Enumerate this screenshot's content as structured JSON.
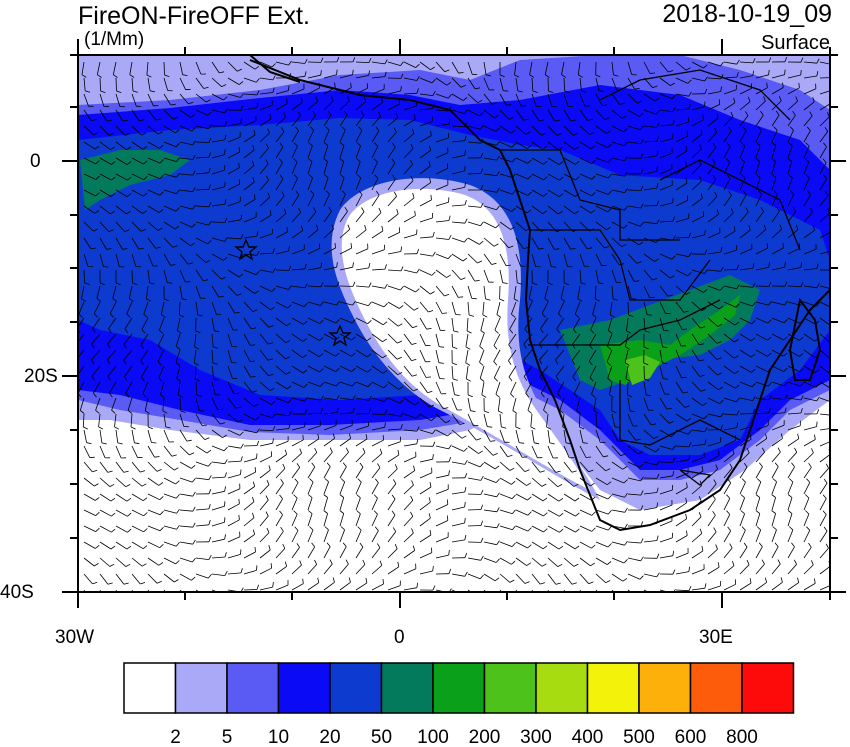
{
  "header": {
    "title": "FireON-FireOFF Ext.",
    "units": "(1/Mm)",
    "datetime": "2018-10-19_09",
    "level": "Surface"
  },
  "axes": {
    "lat_labels": [
      "0",
      "20S",
      "40S"
    ],
    "lon_labels": [
      "30W",
      "0",
      "30E"
    ]
  },
  "colorbar": {
    "labels": [
      "2",
      "5",
      "10",
      "20",
      "50",
      "100",
      "200",
      "300",
      "400",
      "500",
      "600",
      "800"
    ],
    "colors": [
      "#ffffff",
      "#a9a9f7",
      "#5a5af5",
      "#0a0af7",
      "#0d3bd0",
      "#047a5c",
      "#0aa01a",
      "#4cc21a",
      "#a6dc10",
      "#f2f20a",
      "#fdb00a",
      "#fd5c0a",
      "#fd0a0a"
    ]
  },
  "map": {
    "region": "Southern Africa and South-East Atlantic",
    "fill_colors": {
      "white": "#ffffff",
      "light": "#a9a9f7",
      "mid": "#5a5af5",
      "blue": "#0a0af7",
      "dark": "#0d3bd0",
      "teal": "#047a5c",
      "green": "#0aa01a",
      "lime": "#4cc21a"
    }
  }
}
